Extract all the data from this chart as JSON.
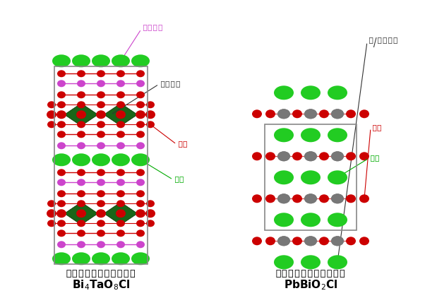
{
  "label1_main": "オキシハライド光触媒１",
  "label1_formula": "Bi$_4$TaO$_8$Cl",
  "label2_main": "オキシハライド光触媒２",
  "label2_formula": "PbBiO$_2$Cl",
  "ann_bismuth": "ビスマス",
  "ann_tantalum": "タンタル",
  "ann_oxygen1": "酸素",
  "ann_chlorine1": "塩素",
  "ann_pb_bismuth": "鉛/ビスマス",
  "ann_oxygen2": "酸素",
  "ann_chlorine2": "塩素",
  "col_bi": "#cc44cc",
  "col_ta": "#006600",
  "col_o": "#cc0000",
  "col_cl": "#22cc22",
  "col_pb": "#777777",
  "col_bond": "#cc0000",
  "col_bond2": "#888888",
  "col_box": "#888888",
  "bg": "#ffffff"
}
